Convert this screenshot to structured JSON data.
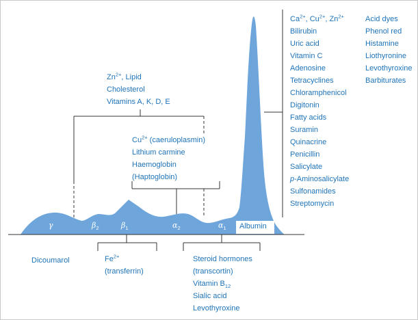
{
  "colors": {
    "curve": "#6ea6dc",
    "text": "#1e73b8",
    "line": "#333333",
    "frame": "#c8c8c8"
  },
  "peaks": {
    "gamma": "γ",
    "beta2": {
      "symbol": "β",
      "sub": "2"
    },
    "beta1": {
      "symbol": "β",
      "sub": "1"
    },
    "alpha2": {
      "symbol": "α",
      "sub": "2"
    },
    "alpha1": {
      "symbol": "α",
      "sub": "1"
    },
    "albumin": "Albumin"
  },
  "beta_group": {
    "zn": "Zn",
    "zn_sup": "2+",
    "lipid": ",  Lipid",
    "items": [
      "Cholesterol",
      "Vitamins A, K, D, E"
    ]
  },
  "alpha2_group": {
    "cu": "Cu",
    "cu_sup": "2+",
    "cu_rest": " (caeruloplasmin)",
    "items": [
      "Lithium carmine",
      "Haemoglobin",
      "(Haptoglobin)"
    ]
  },
  "albumin_group": {
    "first": {
      "parts": [
        "Ca",
        ", Cu",
        ", Zn"
      ],
      "sups": [
        "2+",
        "2+",
        "2+"
      ]
    },
    "col1": [
      "Bilirubin",
      "Uric acid",
      "Vitamin C",
      "Adenosine",
      "Tetracyclines",
      "Chloramphenicol",
      "Digitonin",
      "Fatty acids",
      "Suramin",
      "Quinacrine",
      "Penicillin",
      "Salicylate"
    ],
    "pas": {
      "italic": "p",
      "rest": "-Aminosalicylate"
    },
    "col1_end": [
      "Sulfonamides",
      "Streptomycin"
    ],
    "col2": [
      "Acid dyes",
      "Phenol red",
      "Histamine",
      "Liothyronine",
      "Levothyroxine",
      "Barbiturates"
    ]
  },
  "gamma_label": "Dicoumarol",
  "beta1_below": {
    "fe": "Fe",
    "fe_sup": "2+",
    "items": [
      "(transferrin)"
    ]
  },
  "alpha1_below": {
    "items": [
      "Steroid hormones",
      "(transcortin)"
    ],
    "vitb": "Vitamin B",
    "vitb_sub": "12",
    "items2": [
      "Sialic acid",
      "Levothyroxine"
    ]
  }
}
